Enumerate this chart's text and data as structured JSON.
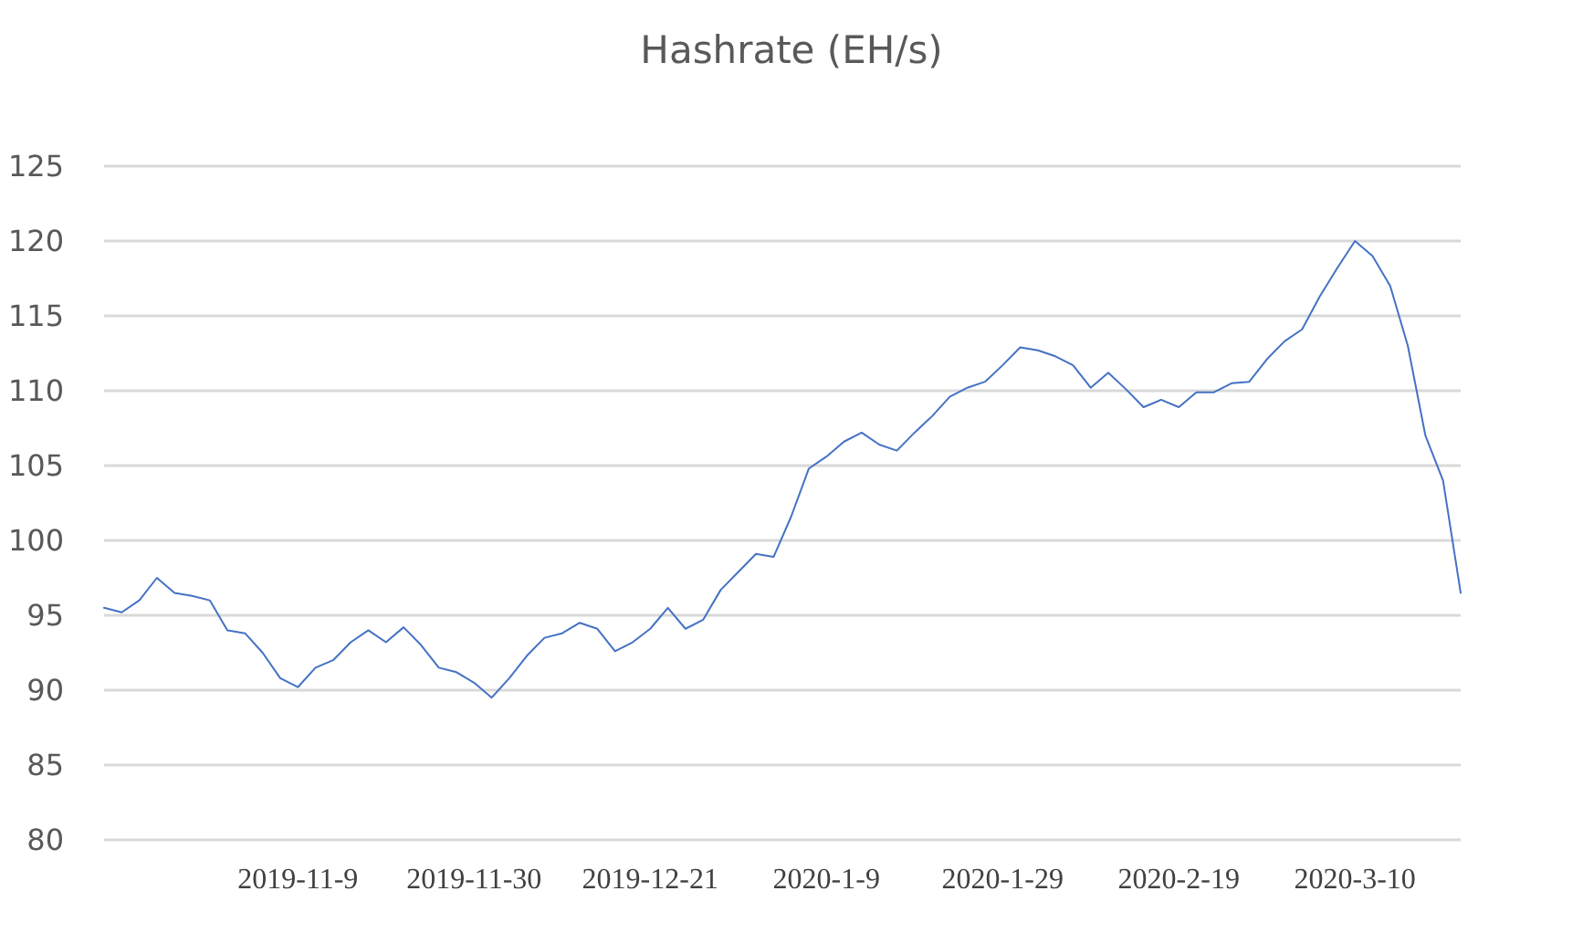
{
  "chart_data": {
    "type": "line",
    "title": "Hashrate (EH/s)",
    "categories": [
      null,
      null,
      null,
      null,
      null,
      null,
      null,
      null,
      null,
      null,
      null,
      "2019-11-9",
      null,
      null,
      null,
      null,
      null,
      null,
      null,
      null,
      null,
      "2019-11-30",
      null,
      null,
      null,
      null,
      null,
      null,
      null,
      null,
      null,
      "2019-12-21",
      null,
      null,
      null,
      null,
      null,
      null,
      null,
      null,
      null,
      "2020-1-9",
      null,
      null,
      null,
      null,
      null,
      null,
      null,
      null,
      null,
      "2020-1-29",
      null,
      null,
      null,
      null,
      null,
      null,
      null,
      null,
      null,
      "2020-2-19",
      null,
      null,
      null,
      null,
      null,
      null,
      null,
      null,
      null,
      "2020-3-10",
      null,
      null,
      null,
      null,
      null,
      null
    ],
    "series": [
      {
        "color": "#4472c4",
        "values": [
          95.5,
          95.2,
          96,
          97.5,
          96.5,
          96.3,
          96,
          94,
          93.8,
          92.5,
          90.8,
          90.2,
          91.5,
          92,
          93.2,
          94,
          93.2,
          94.2,
          93,
          91.5,
          91.2,
          90.5,
          89.5,
          90.8,
          92.3,
          93.5,
          93.8,
          94.5,
          94.1,
          92.6,
          93.2,
          94.1,
          95.5,
          94.1,
          94.7,
          96.7,
          97.9,
          99.1,
          98.9,
          101.6,
          104.8,
          105.6,
          106.6,
          107.2,
          106.4,
          106,
          107.2,
          108.3,
          109.6,
          110.2,
          110.6,
          111.7,
          112.9,
          112.7,
          112.3,
          111.7,
          110.2,
          111.2,
          110.1,
          108.9,
          109.4,
          108.9,
          109.9,
          109.9,
          110.5,
          110.6,
          112.1,
          113.3,
          114.1,
          116.3,
          118.2,
          120,
          119,
          117,
          113,
          107,
          104,
          96.5
        ]
      }
    ],
    "ylim": [
      80,
      125
    ],
    "yticks": [
      80,
      85,
      90,
      95,
      100,
      105,
      110,
      115,
      120,
      125
    ],
    "grid": "y",
    "marker": "none",
    "line_style": "solid"
  }
}
